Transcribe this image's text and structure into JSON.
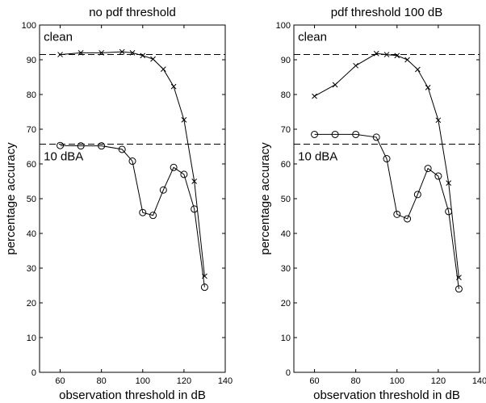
{
  "chart_data": [
    {
      "type": "line",
      "title": "no pdf threshold",
      "xlabel": "observation threshold in dB",
      "ylabel": "percentage accuracy",
      "xlim": [
        50,
        140
      ],
      "ylim": [
        0,
        100
      ],
      "xticks": [
        60,
        80,
        100,
        120,
        140
      ],
      "yticks": [
        0,
        10,
        20,
        30,
        40,
        50,
        60,
        70,
        80,
        90,
        100
      ],
      "grid": false,
      "reference_lines": [
        {
          "name": "clean",
          "y": 91.5
        },
        {
          "name": "10 dBA",
          "y": 65.7
        }
      ],
      "annotations": [
        {
          "text": "clean",
          "x": 52,
          "y": 95.5
        },
        {
          "text": "10 dBA",
          "x": 52,
          "y": 61
        }
      ],
      "series": [
        {
          "marker": "x",
          "x": [
            60,
            70,
            80,
            90,
            95,
            100,
            105,
            110,
            115,
            120,
            125,
            130
          ],
          "y": [
            91.5,
            92,
            92,
            92.3,
            92,
            91.2,
            90.2,
            87.3,
            82.3,
            72.7,
            55,
            27.7
          ]
        },
        {
          "marker": "o",
          "x": [
            60,
            70,
            80,
            90,
            95,
            100,
            105,
            110,
            115,
            120,
            125,
            130
          ],
          "y": [
            65.3,
            65.2,
            65.2,
            64.2,
            60.8,
            46,
            45.2,
            52.5,
            59,
            57,
            47,
            24.5
          ]
        }
      ]
    },
    {
      "type": "line",
      "title": "pdf threshold 100 dB",
      "xlabel": "observation threshold in dB",
      "ylabel": "percentage accuracy",
      "xlim": [
        50,
        140
      ],
      "ylim": [
        0,
        100
      ],
      "xticks": [
        60,
        80,
        100,
        120,
        140
      ],
      "yticks": [
        0,
        10,
        20,
        30,
        40,
        50,
        60,
        70,
        80,
        90,
        100
      ],
      "grid": false,
      "reference_lines": [
        {
          "name": "clean",
          "y": 91.5
        },
        {
          "name": "10 dBA",
          "y": 65.7
        }
      ],
      "annotations": [
        {
          "text": "clean",
          "x": 52,
          "y": 95.5
        },
        {
          "text": "10 dBA",
          "x": 52,
          "y": 61
        }
      ],
      "series": [
        {
          "marker": "x",
          "x": [
            60,
            70,
            80,
            90,
            95,
            100,
            105,
            110,
            115,
            120,
            125,
            130
          ],
          "y": [
            79.5,
            82.8,
            88.3,
            91.8,
            91.5,
            91.2,
            90,
            87.2,
            82,
            72.6,
            54.5,
            27.3
          ]
        },
        {
          "marker": "o",
          "x": [
            60,
            70,
            80,
            90,
            95,
            100,
            105,
            110,
            115,
            120,
            125,
            130
          ],
          "y": [
            68.5,
            68.5,
            68.5,
            67.7,
            61.5,
            45.5,
            44.2,
            51.2,
            58.7,
            56.5,
            46.3,
            24
          ]
        }
      ]
    }
  ]
}
